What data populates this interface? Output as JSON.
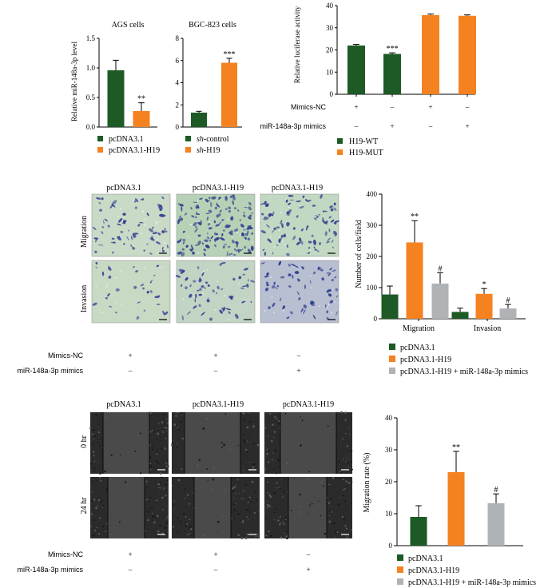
{
  "colors": {
    "green": "#1d5a26",
    "orange": "#f58220",
    "gray": "#b0b3b5",
    "axis": "#000000",
    "micro_bg": "#c7d9c4",
    "micro_cell": "#2e3b8f",
    "wound_bg": "#3a3a3a"
  },
  "panelA": {
    "ylabel": "Relative miR-148a-3p level",
    "legend": [
      {
        "label": "pcDNA3.1",
        "color": "#1d5a26"
      },
      {
        "label": "pcDNA3.1-H19",
        "color": "#f58220"
      }
    ],
    "legend2": [
      {
        "prefix": "sh",
        "suffix": "-control",
        "color": "#1d5a26"
      },
      {
        "prefix": "sh",
        "suffix": "-H19",
        "color": "#f58220"
      }
    ]
  },
  "chart_data": [
    {
      "id": "ags",
      "type": "bar",
      "title": "AGS cells",
      "ylabel": "Relative miR-148a-3p level",
      "categories": [
        "pcDNA3.1",
        "pcDNA3.1-H19"
      ],
      "values": [
        0.96,
        0.27
      ],
      "errors": [
        0.17,
        0.14
      ],
      "colors": [
        "#1d5a26",
        "#f58220"
      ],
      "significance": [
        "",
        "**"
      ],
      "ylim": [
        0,
        1.5
      ],
      "yticks": [
        0.0,
        0.5,
        1.0,
        1.5
      ],
      "yticklabels": [
        "0.0",
        "0.5",
        "1.0",
        "1.5"
      ]
    },
    {
      "id": "bgc",
      "type": "bar",
      "title": "BGC-823 cells",
      "categories": [
        "sh-control",
        "sh-H19"
      ],
      "values": [
        1.3,
        5.8
      ],
      "errors": [
        0.12,
        0.4
      ],
      "colors": [
        "#1d5a26",
        "#f58220"
      ],
      "significance": [
        "",
        "***"
      ],
      "ylim": [
        0,
        8
      ],
      "yticks": [
        0,
        2,
        4,
        6,
        8
      ],
      "yticklabels": [
        "0",
        "2",
        "4",
        "6",
        "8"
      ]
    },
    {
      "id": "luc",
      "type": "bar",
      "ylabel": "Relative luciferase activity",
      "categories": [
        "H19-WT / Mimics-NC",
        "H19-WT / miR-148a-3p mimics",
        "H19-MUT / Mimics-NC",
        "H19-MUT / miR-148a-3p mimics"
      ],
      "values": [
        22.0,
        18.2,
        35.7,
        35.4
      ],
      "errors": [
        0.5,
        0.5,
        0.5,
        0.4
      ],
      "colors": [
        "#1d5a26",
        "#1d5a26",
        "#f58220",
        "#f58220"
      ],
      "significance": [
        "",
        "***",
        "",
        ""
      ],
      "ylim": [
        0,
        40
      ],
      "yticks": [
        0,
        10,
        20,
        30,
        40
      ],
      "yticklabels": [
        "0",
        "10",
        "20",
        "30",
        "40"
      ],
      "rows": [
        {
          "label": "Mimics-NC",
          "marks": [
            "+",
            "–",
            "+",
            "–"
          ]
        },
        {
          "label": "miR-148a-3p mimics",
          "marks": [
            "–",
            "+",
            "–",
            "+"
          ]
        }
      ],
      "legend": [
        {
          "label": "H19-WT",
          "color": "#1d5a26"
        },
        {
          "label": "H19-MUT",
          "color": "#f58220"
        }
      ]
    },
    {
      "id": "cells",
      "type": "bar",
      "ylabel": "Number of cells/field",
      "groups": [
        "Migration",
        "Invasion"
      ],
      "series": [
        {
          "name": "pcDNA3.1",
          "values": [
            78,
            22
          ],
          "errors": [
            27,
            12
          ],
          "color": "#1d5a26",
          "significance": [
            "",
            ""
          ]
        },
        {
          "name": "pcDNA3.1-H19",
          "values": [
            245,
            80
          ],
          "errors": [
            70,
            17
          ],
          "color": "#f58220",
          "significance": [
            "**",
            "*"
          ]
        },
        {
          "name": "pcDNA3.1-H19 + miR-148a-3p mimics",
          "values": [
            113,
            33
          ],
          "errors": [
            35,
            13
          ],
          "color": "#b0b3b5",
          "significance": [
            "#",
            "#"
          ]
        }
      ],
      "ylim": [
        0,
        400
      ],
      "yticks": [
        0,
        100,
        200,
        300,
        400
      ],
      "yticklabels": [
        "0",
        "100",
        "200",
        "300",
        "400"
      ]
    },
    {
      "id": "migrate",
      "type": "bar",
      "ylabel": "Migration rate (%)",
      "categories": [
        "pcDNA3.1",
        "pcDNA3.1-H19",
        "pcDNA3.1-H19 + miR-148a-3p mimics"
      ],
      "values": [
        9.0,
        23.0,
        13.3
      ],
      "errors": [
        3.5,
        6.5,
        2.9
      ],
      "colors": [
        "#1d5a26",
        "#f58220",
        "#b0b3b5"
      ],
      "significance": [
        "",
        "**",
        "#"
      ],
      "ylim": [
        0,
        40
      ],
      "yticks": [
        0,
        10,
        20,
        30,
        40
      ],
      "yticklabels": [
        "0",
        "10",
        "20",
        "30",
        "40"
      ],
      "legend": [
        {
          "label": "pcDNA3.1",
          "color": "#1d5a26"
        },
        {
          "label": "pcDNA3.1-H19",
          "color": "#f58220"
        },
        {
          "label": "pcDNA3.1-H19 + miR-148a-3p mimics",
          "color": "#b0b3b5"
        }
      ]
    }
  ],
  "panelMicro": {
    "columns": [
      "pcDNA3.1",
      "pcDNA3.1-H19",
      "pcDNA3.1-H19"
    ],
    "rows": [
      "Migration",
      "Invasion"
    ],
    "treat_rows": [
      {
        "label": "Mimics-NC",
        "marks": [
          "+",
          "+",
          "–"
        ]
      },
      {
        "label": "miR-148a-3p mimics",
        "marks": [
          "–",
          "–",
          "+"
        ]
      }
    ]
  },
  "panelWound": {
    "columns": [
      "pcDNA3.1",
      "pcDNA3.1-H19",
      "pcDNA3.1-H19"
    ],
    "rows": [
      "0 hr",
      "24 hr"
    ],
    "treat_rows": [
      {
        "label": "Mimics-NC",
        "marks": [
          "+",
          "+",
          "–"
        ]
      },
      {
        "label": "miR-148a-3p mimics",
        "marks": [
          "–",
          "–",
          "+"
        ]
      }
    ]
  }
}
